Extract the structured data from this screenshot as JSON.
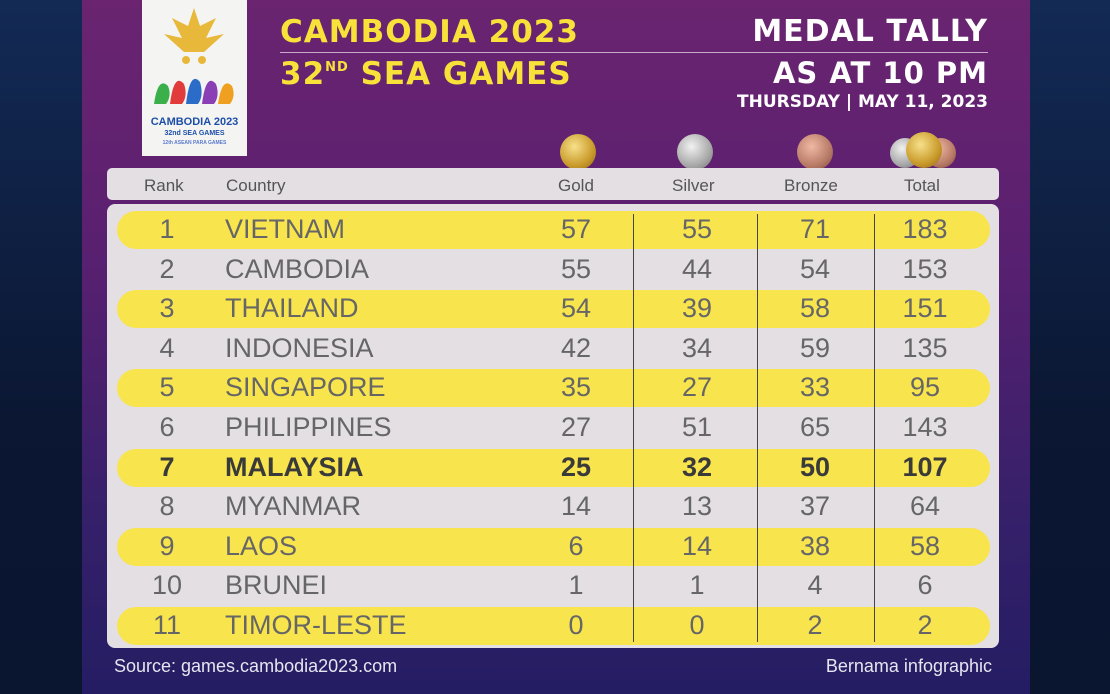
{
  "logo": {
    "line1": "CAMBODIA 2023",
    "line2": "32nd SEA GAMES",
    "line3": "12th ASEAN PARA GAMES"
  },
  "title": {
    "line1": "CAMBODIA 2023",
    "line2_num": "32",
    "line2_sup": "ND",
    "line2_rest": "SEA GAMES",
    "right1": "MEDAL TALLY",
    "right2": "AS AT 10 PM",
    "right3": "THURSDAY | MAY 11, 2023"
  },
  "columns": {
    "rank": "Rank",
    "country": "Country",
    "gold": "Gold",
    "silver": "Silver",
    "bronze": "Bronze",
    "total": "Total"
  },
  "rows": [
    {
      "rank": "1",
      "country": "VIETNAM",
      "gold": "57",
      "silver": "55",
      "bronze": "71",
      "total": "183"
    },
    {
      "rank": "2",
      "country": "CAMBODIA",
      "gold": "55",
      "silver": "44",
      "bronze": "54",
      "total": "153"
    },
    {
      "rank": "3",
      "country": "THAILAND",
      "gold": "54",
      "silver": "39",
      "bronze": "58",
      "total": "151"
    },
    {
      "rank": "4",
      "country": "INDONESIA",
      "gold": "42",
      "silver": "34",
      "bronze": "59",
      "total": "135"
    },
    {
      "rank": "5",
      "country": "SINGAPORE",
      "gold": "35",
      "silver": "27",
      "bronze": "33",
      "total": "95"
    },
    {
      "rank": "6",
      "country": "PHILIPPINES",
      "gold": "27",
      "silver": "51",
      "bronze": "65",
      "total": "143"
    },
    {
      "rank": "7",
      "country": "MALAYSIA",
      "gold": "25",
      "silver": "32",
      "bronze": "50",
      "total": "107"
    },
    {
      "rank": "8",
      "country": "MYANMAR",
      "gold": "14",
      "silver": "13",
      "bronze": "37",
      "total": "64"
    },
    {
      "rank": "9",
      "country": "LAOS",
      "gold": "6",
      "silver": "14",
      "bronze": "38",
      "total": "58"
    },
    {
      "rank": "10",
      "country": "BRUNEI",
      "gold": "1",
      "silver": "1",
      "bronze": "4",
      "total": "6"
    },
    {
      "rank": "11",
      "country": "TIMOR-LESTE",
      "gold": "0",
      "silver": "0",
      "bronze": "2",
      "total": "2"
    }
  ],
  "footer": {
    "source": "Source: games.cambodia2023.com",
    "credit": "Bernama infographic"
  },
  "colors": {
    "highlight": "#f8e44d",
    "title_yellow": "#f8e23a",
    "panel": "#e3dfe3"
  }
}
